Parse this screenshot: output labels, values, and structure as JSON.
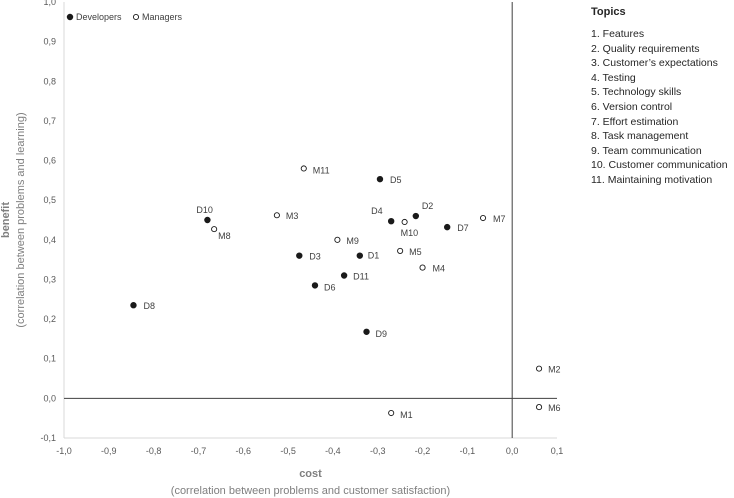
{
  "chart_data": {
    "type": "scatter",
    "xlabel": "cost",
    "xlabel_sub": "(correlation between problems and customer satisfaction)",
    "ylabel": "benefit",
    "ylabel_sub": "(correlation between problems and learning)",
    "xlim": [
      -1.0,
      0.1
    ],
    "ylim": [
      -0.1,
      1.0
    ],
    "xticks": [
      "-1,0",
      "-0,9",
      "-0,8",
      "-0,7",
      "-0,6",
      "-0,5",
      "-0,4",
      "-0,3",
      "-0,2",
      "-0,1",
      "0,0",
      "0,1"
    ],
    "yticks": [
      "-0,1",
      "0,0",
      "0,1",
      "0,2",
      "0,3",
      "0,4",
      "0,5",
      "0,6",
      "0,7",
      "0,8",
      "0,9",
      "1,0"
    ],
    "xtick_values": [
      -1.0,
      -0.9,
      -0.8,
      -0.7,
      -0.6,
      -0.5,
      -0.4,
      -0.3,
      -0.2,
      -0.1,
      0.0,
      0.1
    ],
    "ytick_values": [
      -0.1,
      0.0,
      0.1,
      0.2,
      0.3,
      0.4,
      0.5,
      0.6,
      0.7,
      0.8,
      0.9,
      1.0
    ],
    "grid": false,
    "legend_position": "top-left",
    "series": [
      {
        "name": "Developers",
        "marker": "filled",
        "color": "#1a1a1a",
        "points": [
          {
            "label": "D1",
            "x": -0.34,
            "y": 0.36
          },
          {
            "label": "D2",
            "x": -0.215,
            "y": 0.46
          },
          {
            "label": "D3",
            "x": -0.475,
            "y": 0.36
          },
          {
            "label": "D4",
            "x": -0.27,
            "y": 0.447
          },
          {
            "label": "D5",
            "x": -0.295,
            "y": 0.553
          },
          {
            "label": "D6",
            "x": -0.44,
            "y": 0.285
          },
          {
            "label": "D7",
            "x": -0.145,
            "y": 0.432
          },
          {
            "label": "D8",
            "x": -0.845,
            "y": 0.235
          },
          {
            "label": "D9",
            "x": -0.325,
            "y": 0.168
          },
          {
            "label": "D10",
            "x": -0.68,
            "y": 0.45
          },
          {
            "label": "D11",
            "x": -0.375,
            "y": 0.31
          }
        ]
      },
      {
        "name": "Managers",
        "marker": "hollow",
        "color": "#1a1a1a",
        "points": [
          {
            "label": "M1",
            "x": -0.27,
            "y": -0.037
          },
          {
            "label": "M2",
            "x": 0.06,
            "y": 0.075
          },
          {
            "label": "M3",
            "x": -0.525,
            "y": 0.462
          },
          {
            "label": "M4",
            "x": -0.2,
            "y": 0.33
          },
          {
            "label": "M5",
            "x": -0.25,
            "y": 0.372
          },
          {
            "label": "M6",
            "x": 0.06,
            "y": -0.022
          },
          {
            "label": "M7",
            "x": -0.065,
            "y": 0.455
          },
          {
            "label": "M8",
            "x": -0.665,
            "y": 0.427
          },
          {
            "label": "M9",
            "x": -0.39,
            "y": 0.4
          },
          {
            "label": "M10",
            "x": -0.24,
            "y": 0.445
          },
          {
            "label": "M11",
            "x": -0.465,
            "y": 0.58
          }
        ]
      }
    ]
  },
  "topics": {
    "title": "Topics",
    "items": [
      "1. Features",
      "2. Quality requirements",
      "3. Customer’s expectations",
      "4. Testing",
      "5. Technology skills",
      "6. Version control",
      "7. Effort estimation",
      "8. Task management",
      "9. Team communication",
      "10. Customer communication",
      "11. Maintaining motivation"
    ]
  }
}
